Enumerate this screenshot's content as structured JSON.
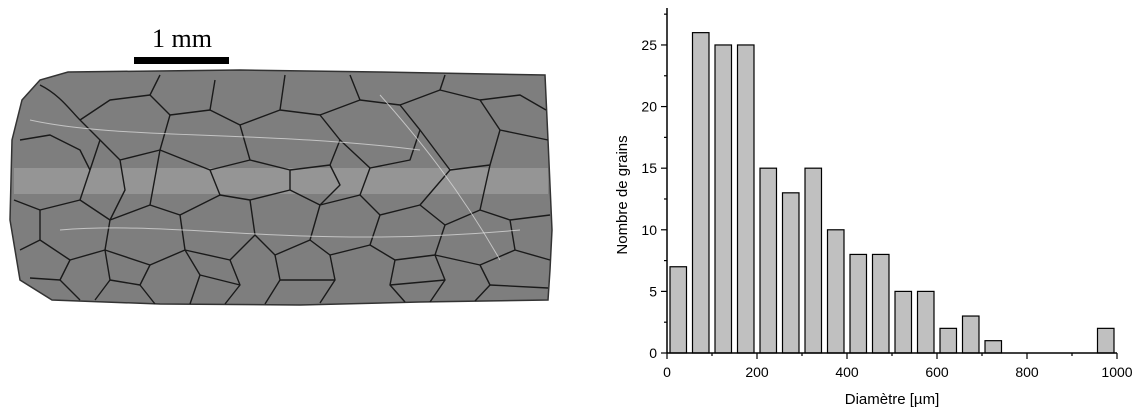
{
  "figure": {
    "micrograph": {
      "scale_bar_label": "1 mm",
      "sample_fill": "#7e7e7e",
      "band_fill": "#a8a8a8"
    }
  },
  "chart_data": {
    "type": "bar",
    "xlabel": "Diamètre [µm]",
    "ylabel": "Nombre de grains",
    "xlim": [
      0,
      1000
    ],
    "ylim": [
      0,
      28
    ],
    "xticks": [
      0,
      200,
      400,
      600,
      800,
      1000
    ],
    "yticks": [
      0,
      5,
      10,
      15,
      20,
      25
    ],
    "bin_width": 50,
    "bar_color": "#c0c0c0",
    "bars": [
      {
        "x": 25,
        "value": 7
      },
      {
        "x": 75,
        "value": 26
      },
      {
        "x": 125,
        "value": 25
      },
      {
        "x": 175,
        "value": 25
      },
      {
        "x": 225,
        "value": 15
      },
      {
        "x": 275,
        "value": 13
      },
      {
        "x": 325,
        "value": 15
      },
      {
        "x": 375,
        "value": 10
      },
      {
        "x": 425,
        "value": 8
      },
      {
        "x": 475,
        "value": 8
      },
      {
        "x": 525,
        "value": 5
      },
      {
        "x": 575,
        "value": 5
      },
      {
        "x": 625,
        "value": 2
      },
      {
        "x": 675,
        "value": 3
      },
      {
        "x": 725,
        "value": 1
      },
      {
        "x": 975,
        "value": 2
      }
    ]
  }
}
